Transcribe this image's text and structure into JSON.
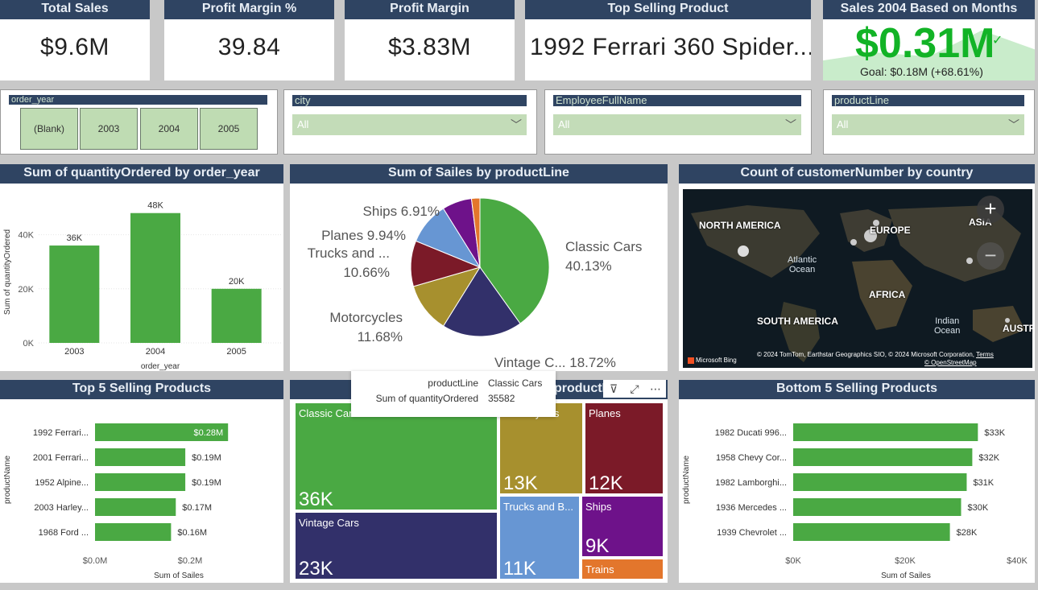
{
  "kpis": [
    {
      "title": "Total Sales",
      "value": "$9.6M"
    },
    {
      "title": "Profit Margin %",
      "value": "39.84"
    },
    {
      "title": "Profit Margin",
      "value": "$3.83M"
    },
    {
      "title": "Top Selling Product",
      "value": "1992 Ferrari 360 Spider..."
    }
  ],
  "goal_card": {
    "title": "Sales 2004 Based on Months",
    "value": "$0.31M",
    "goal": "Goal: $0.18M (+68.61%)",
    "status_icon": "check-icon",
    "trend_values": [
      0.2,
      0.28,
      0.24,
      0.5,
      0.31
    ]
  },
  "slicers": {
    "order_year": {
      "header": "order_year",
      "options": [
        "(Blank)",
        "2003",
        "2004",
        "2005"
      ]
    },
    "city": {
      "header": "city",
      "value": "All"
    },
    "employee": {
      "header": "EmployeeFullName",
      "value": "All"
    },
    "productline": {
      "header": "productLine",
      "value": "All"
    }
  },
  "bar_chart": {
    "title": "Sum of quantityOrdered by order_year"
  },
  "pie_chart": {
    "title": "Sum of Sailes by productLine"
  },
  "map_chart": {
    "title": "Count of customerNumber by country",
    "labels": {
      "na": "NORTH AMERICA",
      "eu": "EUROPE",
      "asia": "ASIA",
      "africa": "AFRICA",
      "sa": "SOUTH AMERICA",
      "aus": "AUSTRA",
      "atlantic": "Atlantic\nOcean",
      "indian": "Indian\nOcean"
    },
    "zoom_in": "+",
    "zoom_out": "−",
    "bing": "Microsoft Bing",
    "credit": "© 2024 TomTom, Earthstar Geographics SIO, © 2024 Microsoft Corporation,",
    "terms": "Terms",
    "osm": "© OpenStreetMap"
  },
  "top5": {
    "title": "Top 5 Selling Products"
  },
  "treemap": {
    "title_visible": "productLine"
  },
  "bottom5": {
    "title": "Bottom 5 Selling Products"
  },
  "tooltip": {
    "k1": "productLine",
    "v1": "Classic Cars",
    "k2": "Sum of quantityOrdered",
    "v2": "35582"
  },
  "colors": {
    "header": "#2f4462",
    "green": "#4aa943",
    "navy": "#32306a",
    "olive": "#a7902e",
    "maroon": "#7b1a28",
    "blue": "#6796d3",
    "purple": "#6e128a",
    "orange": "#e3762c"
  },
  "chart_data": [
    {
      "type": "bar",
      "title": "Sum of quantityOrdered by order_year",
      "categories": [
        "2003",
        "2004",
        "2005"
      ],
      "values": [
        36000,
        48000,
        20000
      ],
      "data_labels": [
        "36K",
        "48K",
        "20K"
      ],
      "xlabel": "order_year",
      "ylabel": "Sum of quantityOrdered",
      "yticks": [
        "0K",
        "20K",
        "40K"
      ],
      "ylim": [
        0,
        50000
      ]
    },
    {
      "type": "pie",
      "title": "Sum of Sailes by productLine",
      "slices": [
        {
          "name": "Classic Cars",
          "value": 40.13,
          "label1": "Classic Cars",
          "label2": "40.13%",
          "color": "#4aa943"
        },
        {
          "name": "Vintage Cars",
          "value": 18.72,
          "label1": "Vintage C...",
          "label2": "18.72%",
          "color": "#32306a"
        },
        {
          "name": "Motorcycles",
          "value": 11.68,
          "label1": "Motorcycles",
          "label2": "11.68%",
          "color": "#a7902e"
        },
        {
          "name": "Trucks and Buses",
          "value": 10.66,
          "label1": "Trucks and ...",
          "label2": "10.66%",
          "color": "#7b1a28"
        },
        {
          "name": "Planes",
          "value": 9.94,
          "label1": "Planes",
          "label2": "9.94%",
          "color": "#6796d3"
        },
        {
          "name": "Ships",
          "value": 6.91,
          "label1": "Ships",
          "label2": "6.91%",
          "color": "#6e128a"
        },
        {
          "name": "Trains",
          "value": 1.96,
          "label1": "",
          "label2": "",
          "color": "#e3762c"
        }
      ]
    },
    {
      "type": "bar",
      "orientation": "horizontal",
      "title": "Top 5 Selling Products",
      "categories": [
        "1992 Ferrari...",
        "2001 Ferrari...",
        "1952 Alpine...",
        "2003 Harley...",
        "1968 Ford ..."
      ],
      "values": [
        0.28,
        0.19,
        0.19,
        0.17,
        0.16
      ],
      "data_labels": [
        "$0.28M",
        "$0.19M",
        "$0.19M",
        "$0.17M",
        "$0.16M"
      ],
      "xlabel": "Sum of Sailes",
      "ylabel": "productName",
      "xticks": [
        "$0.0M",
        "$0.2M"
      ],
      "xlim": [
        0,
        0.4
      ]
    },
    {
      "type": "treemap",
      "items": [
        {
          "name": "Classic Cars",
          "label": "Classic Cars",
          "value": 35582,
          "value_label": "36K",
          "color": "#4aa943"
        },
        {
          "name": "Vintage Cars",
          "label": "Vintage Cars",
          "value": 23000,
          "value_label": "23K",
          "color": "#32306a"
        },
        {
          "name": "Motorcycles",
          "label": "Motorcycles",
          "value": 13000,
          "value_label": "13K",
          "color": "#a7902e"
        },
        {
          "name": "Planes",
          "label": "Planes",
          "value": 12000,
          "value_label": "12K",
          "color": "#7b1a28"
        },
        {
          "name": "Trucks and Buses",
          "label": "Trucks and B...",
          "value": 11000,
          "value_label": "11K",
          "color": "#6796d3"
        },
        {
          "name": "Ships",
          "label": "Ships",
          "value": 9000,
          "value_label": "9K",
          "color": "#6e128a"
        },
        {
          "name": "Trains",
          "label": "Trains",
          "value": 2700,
          "value_label": "",
          "color": "#e3762c"
        }
      ]
    },
    {
      "type": "bar",
      "orientation": "horizontal",
      "title": "Bottom 5 Selling Products",
      "categories": [
        "1982 Ducati 996...",
        "1958 Chevy Cor...",
        "1982 Lamborghi...",
        "1936 Mercedes ...",
        "1939 Chevrolet ..."
      ],
      "values": [
        33,
        32,
        31,
        30,
        28
      ],
      "data_labels": [
        "$33K",
        "$32K",
        "$31K",
        "$30K",
        "$28K"
      ],
      "xlabel": "Sum of Sailes",
      "ylabel": "productName",
      "xticks": [
        "$0K",
        "$20K",
        "$40K"
      ],
      "xlim": [
        0,
        40
      ]
    }
  ]
}
